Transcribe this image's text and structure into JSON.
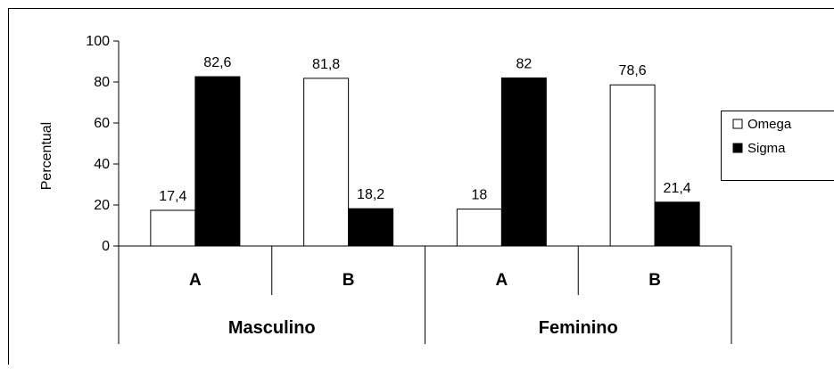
{
  "chart_data": {
    "type": "bar",
    "title": "",
    "ylabel": "Percentual",
    "ylim": [
      0,
      100
    ],
    "yticks": [
      0,
      20,
      40,
      60,
      80,
      100
    ],
    "groups": [
      {
        "name": "Masculino",
        "categories": [
          "A",
          "B"
        ]
      },
      {
        "name": "Feminino",
        "categories": [
          "A",
          "B"
        ]
      }
    ],
    "series": [
      {
        "name": "Omega",
        "color": "#ffffff",
        "values": [
          17.4,
          81.8,
          18,
          78.6
        ],
        "labels": [
          "17,4",
          "81,8",
          "18",
          "78,6"
        ]
      },
      {
        "name": "Sigma",
        "color": "#000000",
        "values": [
          82.6,
          18.2,
          82,
          21.4
        ],
        "labels": [
          "82,6",
          "18,2",
          "82",
          "21,4"
        ]
      }
    ],
    "legend_position": "right",
    "grid": false
  }
}
